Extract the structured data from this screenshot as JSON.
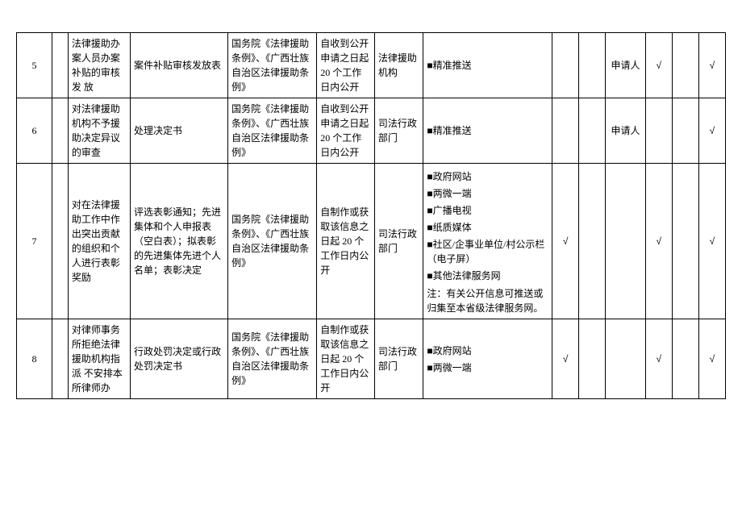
{
  "styles": {
    "border_color": "#000000",
    "background_color": "#ffffff",
    "text_color": "#000000",
    "font_family": "SimSun",
    "font_size_pt": 9,
    "line_height": 1.5,
    "column_widths_fr": [
      40,
      18,
      70,
      110,
      100,
      65,
      55,
      145,
      30,
      30,
      45,
      30,
      30,
      30
    ],
    "check_glyph": "√",
    "bullet_glyph": "■"
  },
  "rows": [
    {
      "idx": "5",
      "matter": "法律援助办案人员办案补贴的审核发\n放",
      "content": "案件补贴审核发放表",
      "basis": "国务院《法律援助条例》、《广西壮族自治区法律援助条例》",
      "time": "自收到公开申请之日起20 个工作日内公开",
      "subject": "法律援助机构",
      "channels": [
        {
          "text": "精准推送",
          "bullet": true
        }
      ],
      "chk1": "",
      "chk2": "",
      "target": "申请人",
      "col12": "√",
      "col13": "",
      "col14": "√"
    },
    {
      "idx": "6",
      "matter": "对法律援助机构不予援助决定异议的审查",
      "content": "处理决定书",
      "basis": "国务院《法律援助条例》、《广西壮族自治区法律援助条例》",
      "time": "自收到公开申请之日起20 个工作日内公开",
      "subject": "司法行政部门",
      "channels": [
        {
          "text": "精准推送",
          "bullet": true
        }
      ],
      "chk1": "",
      "chk2": "",
      "target": "申请人",
      "col12": "",
      "col13": "",
      "col14": "√"
    },
    {
      "idx": "7",
      "matter": "对在法律援助工作中作出突出贡献的组织和个人进行表彰奖励",
      "content": "评选表彰通知；先进集体和个人申报表（空白表）；拟表彰的先进集体先进个人名单；表彰决定",
      "basis": "国务院《法律援助条例》、《广西壮族自治区法律援助条例》",
      "time": "自制作或获取该信息之日起 20 个工作日内公开",
      "subject": "司法行政部门",
      "channels": [
        {
          "text": "政府网站",
          "bullet": true
        },
        {
          "text": "两微一端",
          "bullet": true
        },
        {
          "text": "广播电视",
          "bullet": true
        },
        {
          "text": "纸质媒体",
          "bullet": true
        },
        {
          "text": "社区/企事业单位/村公示栏（电子屏）",
          "bullet": true
        },
        {
          "text": "其他法律服务网",
          "bullet": true
        }
      ],
      "note": "注：有关公开信息可推送或归集至本省级法律服务网。",
      "chk1": "√",
      "chk2": "",
      "target": "",
      "col12": "√",
      "col13": "",
      "col14": "√"
    },
    {
      "idx": "8",
      "matter": "对律师事务所拒绝法律援助机构指派 不安排本所律师办",
      "content": "行政处罚决定或行政处罚决定书",
      "basis": "国务院《法律援助条例》、《广西壮族自治区法律援助条例》",
      "time": "自制作或获取该信息之日起 20 个工作日内公开",
      "subject": "司法行政部门",
      "channels": [
        {
          "text": "政府网站",
          "bullet": true
        },
        {
          "text": "两微一端",
          "bullet": true
        }
      ],
      "chk1": "√",
      "chk2": "",
      "target": "",
      "col12": "√",
      "col13": "",
      "col14": "√"
    }
  ]
}
